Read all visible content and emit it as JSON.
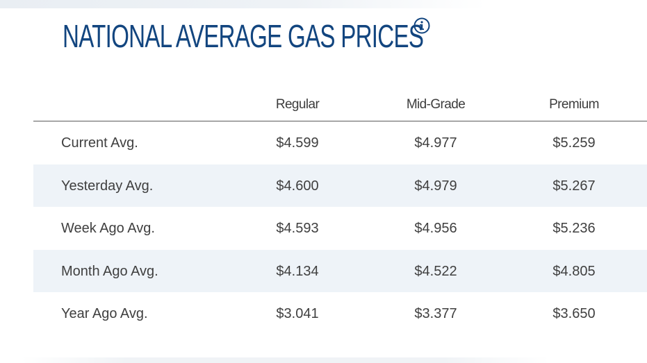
{
  "page": {
    "title": "NATIONAL AVERAGE GAS PRICES",
    "info_icon": "info-icon",
    "title_color": "#12457f"
  },
  "table": {
    "columns": [
      "",
      "Regular",
      "Mid-Grade",
      "Premium"
    ],
    "rows": [
      {
        "label": "Current Avg.",
        "regular": "$4.599",
        "mid_grade": "$4.977",
        "premium": "$5.259"
      },
      {
        "label": "Yesterday Avg.",
        "regular": "$4.600",
        "mid_grade": "$4.979",
        "premium": "$5.267"
      },
      {
        "label": "Week Ago Avg.",
        "regular": "$4.593",
        "mid_grade": "$4.956",
        "premium": "$5.236"
      },
      {
        "label": "Month Ago Avg.",
        "regular": "$4.134",
        "mid_grade": "$4.522",
        "premium": "$4.805"
      },
      {
        "label": "Year Ago Avg.",
        "regular": "$3.041",
        "mid_grade": "$3.377",
        "premium": "$3.650"
      }
    ],
    "stripe_color": "#eef3f8"
  }
}
